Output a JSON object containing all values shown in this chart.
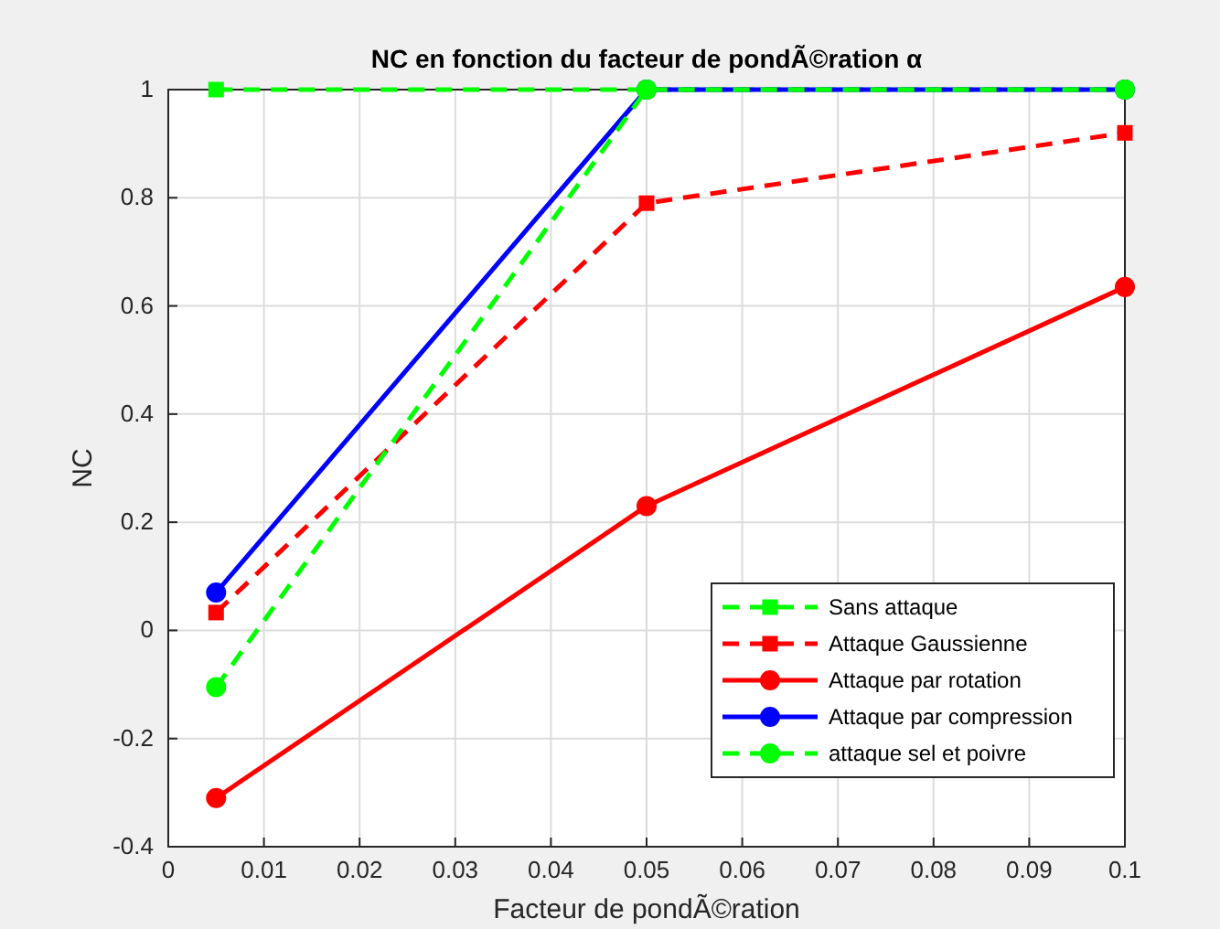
{
  "chart_data": {
    "type": "line",
    "title": "NC en fonction du facteur de pondÃ©ration α",
    "xlabel": "Facteur de pondÃ©ration",
    "ylabel": "NC",
    "x": [
      0.005,
      0.05,
      0.1
    ],
    "series": [
      {
        "name": "Sans attaque",
        "color": "#00ff00",
        "values": [
          1,
          1,
          1
        ],
        "line_style": "dashed",
        "marker": "square"
      },
      {
        "name": "Attaque Gaussienne",
        "color": "#ff0000",
        "values": [
          0.033,
          0.79,
          0.92
        ],
        "line_style": "dashed",
        "marker": "square"
      },
      {
        "name": "Attaque par rotation",
        "color": "#ff0000",
        "values": [
          -0.31,
          0.23,
          0.635
        ],
        "line_style": "solid",
        "marker": "circle"
      },
      {
        "name": "Attaque par compression",
        "color": "#0000ff",
        "values": [
          0.07,
          1,
          1
        ],
        "line_style": "solid",
        "marker": "circle"
      },
      {
        "name": "attaque sel et poivre",
        "color": "#00ff00",
        "values": [
          -0.105,
          1,
          1
        ],
        "line_style": "dashed",
        "marker": "circle"
      }
    ],
    "xlim": [
      0,
      0.1
    ],
    "xticks": [
      0,
      0.01,
      0.02,
      0.03,
      0.04,
      0.05,
      0.06,
      0.07,
      0.08,
      0.09,
      0.1
    ],
    "ylim": [
      -0.4,
      1
    ],
    "yticks": [
      -0.4,
      -0.2,
      0,
      0.2,
      0.4,
      0.6,
      0.8,
      1
    ],
    "grid": true,
    "legend": "bottom right"
  }
}
